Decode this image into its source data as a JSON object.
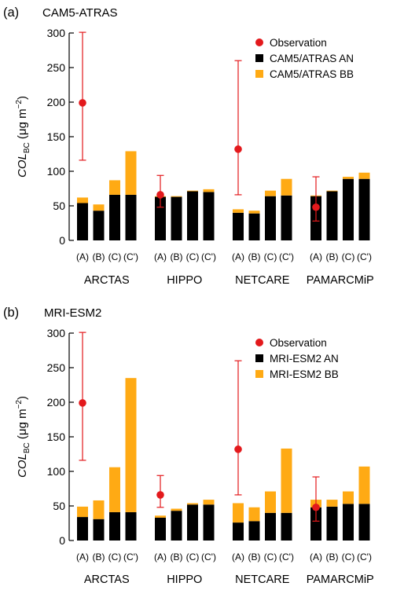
{
  "figure": {
    "colors": {
      "observation": "#e3191c",
      "an": "#000000",
      "bb": "#ffaa14"
    }
  },
  "chart_data": [
    {
      "type": "bar",
      "stacked": true,
      "panel_label": "(a)",
      "title": "CAM5-ATRAS",
      "ylabel": {
        "main": "COL",
        "sub": "BC",
        "unit": " (μg m",
        "exp": "−2",
        "close": ")"
      },
      "ylim": [
        0,
        300
      ],
      "yticks": [
        0,
        50,
        100,
        150,
        200,
        250,
        300
      ],
      "grid": false,
      "legend_position": "top-right",
      "groups": [
        "ARCTAS",
        "HIPPO",
        "NETCARE",
        "PAMARCMiP"
      ],
      "categories": [
        "(A)",
        "(B)",
        "(C)",
        "(C')"
      ],
      "series": [
        {
          "name": "CAM5/ATRAS AN",
          "values": [
            [
              54,
              43,
              66,
              66
            ],
            [
              63,
              63,
              71,
              70
            ],
            [
              40,
              39,
              64,
              65
            ],
            [
              64,
              71,
              89,
              89
            ]
          ]
        },
        {
          "name": "CAM5/ATRAS BB",
          "values": [
            [
              8,
              9,
              21,
              63
            ],
            [
              1,
              1,
              1,
              4
            ],
            [
              5,
              4,
              8,
              24
            ],
            [
              1,
              1,
              3,
              9
            ]
          ]
        }
      ],
      "observation": {
        "name": "Observation",
        "values": [
          {
            "value": 199,
            "low": 116,
            "high": 301
          },
          {
            "value": 66,
            "low": 48,
            "high": 94
          },
          {
            "value": 132,
            "low": 66,
            "high": 260
          },
          {
            "value": 48,
            "low": 28,
            "high": 92
          }
        ]
      }
    },
    {
      "type": "bar",
      "stacked": true,
      "panel_label": "(b)",
      "title": "MRI-ESM2",
      "ylabel": {
        "main": "COL",
        "sub": "BC",
        "unit": " (μg m",
        "exp": "−2",
        "close": ")"
      },
      "ylim": [
        0,
        300
      ],
      "yticks": [
        0,
        50,
        100,
        150,
        200,
        250,
        300
      ],
      "grid": false,
      "legend_position": "top-right",
      "groups": [
        "ARCTAS",
        "HIPPO",
        "NETCARE",
        "PAMARCMiP"
      ],
      "categories": [
        "(A)",
        "(B)",
        "(C)",
        "(C')"
      ],
      "series": [
        {
          "name": "MRI-ESM2 AN",
          "values": [
            [
              34,
              31,
              41,
              41
            ],
            [
              33,
              43,
              52,
              52
            ],
            [
              26,
              28,
              40,
              40
            ],
            [
              48,
              49,
              53,
              53
            ]
          ]
        },
        {
          "name": "MRI-ESM2 BB",
          "values": [
            [
              15,
              27,
              65,
              194
            ],
            [
              3,
              3,
              2,
              7
            ],
            [
              28,
              20,
              31,
              93
            ],
            [
              11,
              10,
              18,
              54
            ]
          ]
        }
      ],
      "observation": {
        "name": "Observation",
        "values": [
          {
            "value": 199,
            "low": 116,
            "high": 301
          },
          {
            "value": 66,
            "low": 48,
            "high": 94
          },
          {
            "value": 132,
            "low": 66,
            "high": 260
          },
          {
            "value": 48,
            "low": 28,
            "high": 92
          }
        ]
      }
    }
  ]
}
